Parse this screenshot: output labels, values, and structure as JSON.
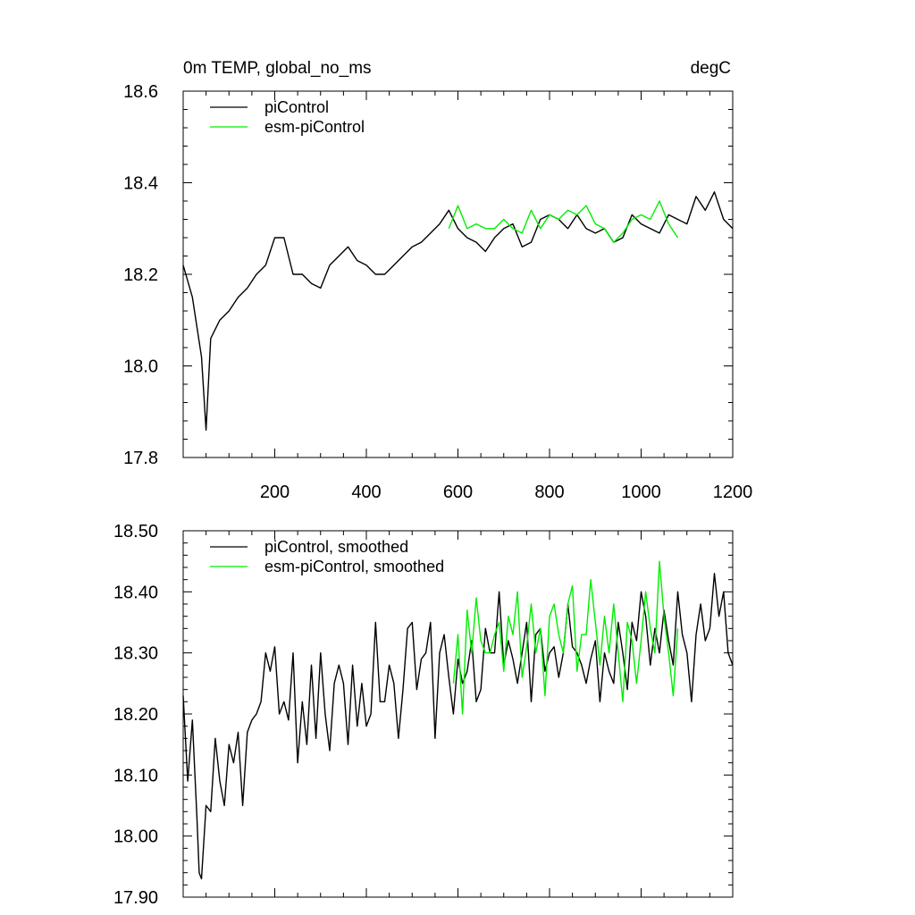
{
  "chart_data": [
    {
      "type": "line",
      "title": "0m TEMP, global_no_ms",
      "units": "degC",
      "xlim": [
        0,
        1200
      ],
      "ylim": [
        17.8,
        18.6
      ],
      "x_ticks": [
        200,
        400,
        600,
        800,
        1000,
        1200
      ],
      "y_ticks": [
        17.8,
        18.0,
        18.2,
        18.4,
        18.6
      ],
      "y_tick_labels": [
        "17.8",
        "18.0",
        "18.2",
        "18.4",
        "18.6"
      ],
      "legend": {
        "position": "top-left",
        "entries": [
          "piControl",
          "esm-piControl"
        ]
      },
      "series": [
        {
          "name": "piControl",
          "color": "#000000",
          "x": [
            0,
            20,
            40,
            50,
            60,
            80,
            100,
            120,
            140,
            160,
            180,
            200,
            220,
            240,
            260,
            280,
            300,
            320,
            340,
            360,
            380,
            400,
            420,
            440,
            460,
            480,
            500,
            520,
            540,
            560,
            580,
            600,
            620,
            640,
            660,
            680,
            700,
            720,
            740,
            760,
            780,
            800,
            820,
            840,
            860,
            880,
            900,
            920,
            940,
            960,
            980,
            1000,
            1020,
            1040,
            1060,
            1080,
            1100,
            1120,
            1140,
            1160,
            1180,
            1200
          ],
          "y": [
            18.22,
            18.15,
            18.02,
            17.86,
            18.06,
            18.1,
            18.12,
            18.15,
            18.17,
            18.2,
            18.22,
            18.28,
            18.28,
            18.2,
            18.2,
            18.18,
            18.17,
            18.22,
            18.24,
            18.26,
            18.23,
            18.22,
            18.2,
            18.2,
            18.22,
            18.24,
            18.26,
            18.27,
            18.29,
            18.31,
            18.34,
            18.3,
            18.28,
            18.27,
            18.25,
            18.28,
            18.3,
            18.31,
            18.26,
            18.27,
            18.32,
            18.33,
            18.32,
            18.3,
            18.33,
            18.3,
            18.29,
            18.3,
            18.27,
            18.28,
            18.33,
            18.31,
            18.3,
            18.29,
            18.33,
            18.32,
            18.31,
            18.37,
            18.34,
            18.38,
            18.32,
            18.3
          ]
        },
        {
          "name": "esm-piControl",
          "color": "#00ee00",
          "x": [
            580,
            600,
            620,
            640,
            660,
            680,
            700,
            720,
            740,
            760,
            780,
            800,
            820,
            840,
            860,
            880,
            900,
            920,
            940,
            960,
            980,
            1000,
            1020,
            1040,
            1060,
            1080
          ],
          "y": [
            18.3,
            18.35,
            18.3,
            18.31,
            18.3,
            18.3,
            18.32,
            18.3,
            18.29,
            18.34,
            18.3,
            18.33,
            18.32,
            18.34,
            18.33,
            18.35,
            18.31,
            18.3,
            18.27,
            18.29,
            18.32,
            18.33,
            18.32,
            18.36,
            18.31,
            18.28
          ]
        }
      ]
    },
    {
      "type": "line",
      "xlim": [
        0,
        1200
      ],
      "ylim": [
        17.9,
        18.5
      ],
      "y_ticks": [
        17.9,
        18.0,
        18.1,
        18.2,
        18.3,
        18.4,
        18.5
      ],
      "y_tick_labels": [
        "17.90",
        "18.00",
        "18.10",
        "18.20",
        "18.30",
        "18.40",
        "18.50"
      ],
      "legend": {
        "position": "top-left",
        "entries": [
          "piControl, smoothed",
          "esm-piControl, smoothed"
        ]
      },
      "series": [
        {
          "name": "piControl, smoothed",
          "color": "#000000",
          "x": [
            0,
            10,
            20,
            30,
            35,
            40,
            50,
            60,
            70,
            80,
            90,
            100,
            110,
            120,
            130,
            140,
            150,
            160,
            170,
            180,
            190,
            200,
            210,
            220,
            230,
            240,
            250,
            260,
            270,
            280,
            290,
            300,
            310,
            320,
            330,
            340,
            350,
            360,
            370,
            380,
            390,
            400,
            410,
            420,
            430,
            440,
            450,
            460,
            470,
            480,
            490,
            500,
            510,
            520,
            530,
            540,
            550,
            560,
            570,
            580,
            590,
            600,
            610,
            620,
            630,
            640,
            650,
            660,
            670,
            680,
            690,
            700,
            710,
            720,
            730,
            740,
            750,
            760,
            770,
            780,
            790,
            800,
            810,
            820,
            830,
            840,
            850,
            860,
            870,
            880,
            890,
            900,
            910,
            920,
            930,
            940,
            950,
            960,
            970,
            980,
            990,
            1000,
            1010,
            1020,
            1030,
            1040,
            1050,
            1060,
            1070,
            1080,
            1090,
            1100,
            1110,
            1120,
            1130,
            1140,
            1150,
            1160,
            1170,
            1180,
            1190,
            1200
          ],
          "y": [
            18.23,
            18.09,
            18.19,
            18.03,
            17.94,
            17.93,
            18.05,
            18.04,
            18.16,
            18.09,
            18.05,
            18.15,
            18.12,
            18.17,
            18.05,
            18.17,
            18.19,
            18.2,
            18.22,
            18.3,
            18.27,
            18.31,
            18.2,
            18.22,
            18.19,
            18.3,
            18.12,
            18.22,
            18.15,
            18.28,
            18.16,
            18.3,
            18.2,
            18.14,
            18.25,
            18.28,
            18.25,
            18.15,
            18.28,
            18.18,
            18.25,
            18.18,
            18.2,
            18.35,
            18.22,
            18.22,
            18.28,
            18.25,
            18.16,
            18.24,
            18.34,
            18.35,
            18.24,
            18.29,
            18.3,
            18.35,
            18.16,
            18.3,
            18.33,
            18.26,
            18.2,
            18.29,
            18.25,
            18.27,
            18.32,
            18.22,
            18.24,
            18.34,
            18.3,
            18.3,
            18.4,
            18.28,
            18.32,
            18.29,
            18.25,
            18.3,
            18.35,
            18.22,
            18.33,
            18.34,
            18.27,
            18.3,
            18.31,
            18.26,
            18.3,
            18.38,
            18.31,
            18.3,
            18.28,
            18.25,
            18.29,
            18.32,
            18.22,
            18.3,
            18.27,
            18.25,
            18.35,
            18.3,
            18.24,
            18.35,
            18.32,
            18.4,
            18.36,
            18.28,
            18.34,
            18.3,
            18.37,
            18.32,
            18.28,
            18.4,
            18.33,
            18.3,
            18.22,
            18.33,
            18.38,
            18.32,
            18.34,
            18.43,
            18.36,
            18.4,
            18.3,
            18.28
          ]
        },
        {
          "name": "esm-piControl, smoothed",
          "color": "#00ee00",
          "x": [
            590,
            600,
            610,
            620,
            630,
            640,
            650,
            660,
            670,
            680,
            690,
            700,
            710,
            720,
            730,
            740,
            750,
            760,
            770,
            780,
            790,
            800,
            810,
            820,
            830,
            840,
            850,
            860,
            870,
            880,
            890,
            900,
            910,
            920,
            930,
            940,
            950,
            960,
            970,
            980,
            990,
            1000,
            1010,
            1020,
            1030,
            1040,
            1050,
            1060,
            1070,
            1080
          ],
          "y": [
            18.25,
            18.33,
            18.2,
            18.37,
            18.3,
            18.39,
            18.32,
            18.3,
            18.3,
            18.33,
            18.35,
            18.27,
            18.36,
            18.33,
            18.4,
            18.26,
            18.31,
            18.38,
            18.3,
            18.34,
            18.23,
            18.36,
            18.38,
            18.33,
            18.3,
            18.38,
            18.41,
            18.27,
            18.33,
            18.33,
            18.42,
            18.35,
            18.28,
            18.36,
            18.3,
            18.38,
            18.3,
            18.22,
            18.35,
            18.32,
            18.25,
            18.32,
            18.4,
            18.34,
            18.3,
            18.45,
            18.36,
            18.3,
            18.23,
            18.34
          ]
        }
      ]
    }
  ]
}
